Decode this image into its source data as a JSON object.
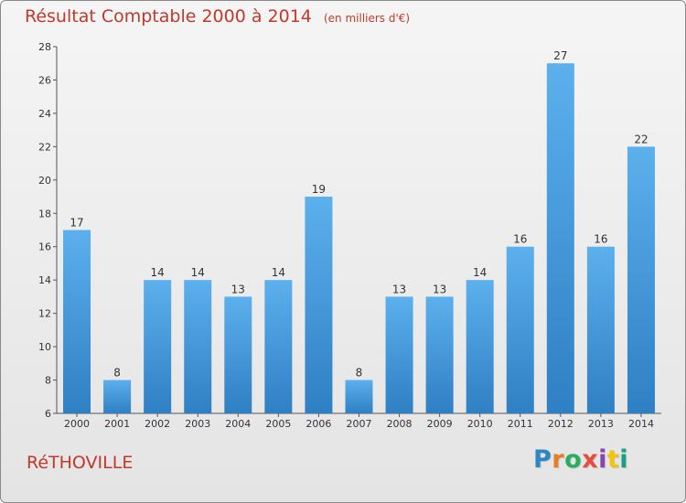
{
  "chart_data": {
    "type": "bar",
    "title": "Résultat Comptable 2000 à 2014",
    "unit": "(en milliers d'€)",
    "categories": [
      "2000",
      "2001",
      "2002",
      "2003",
      "2004",
      "2005",
      "2006",
      "2007",
      "2008",
      "2009",
      "2010",
      "2011",
      "2012",
      "2013",
      "2014"
    ],
    "values": [
      17,
      8,
      14,
      14,
      13,
      14,
      19,
      8,
      13,
      13,
      14,
      16,
      27,
      16,
      22
    ],
    "ylim": [
      6,
      28
    ],
    "yticks": [
      6,
      8,
      10,
      12,
      14,
      16,
      18,
      20,
      22,
      24,
      26,
      28
    ],
    "xlabel": "",
    "ylabel": "",
    "grid": false,
    "bar_color": "#4a9fe0"
  },
  "commune": "RéTHOVILLE",
  "logo": {
    "text": "Proxiti",
    "letter_colors": [
      "#2e86c1",
      "#e67e22",
      "#27ae60",
      "#e74c3c",
      "#8e44ad",
      "#f1c40f",
      "#16a085"
    ]
  }
}
